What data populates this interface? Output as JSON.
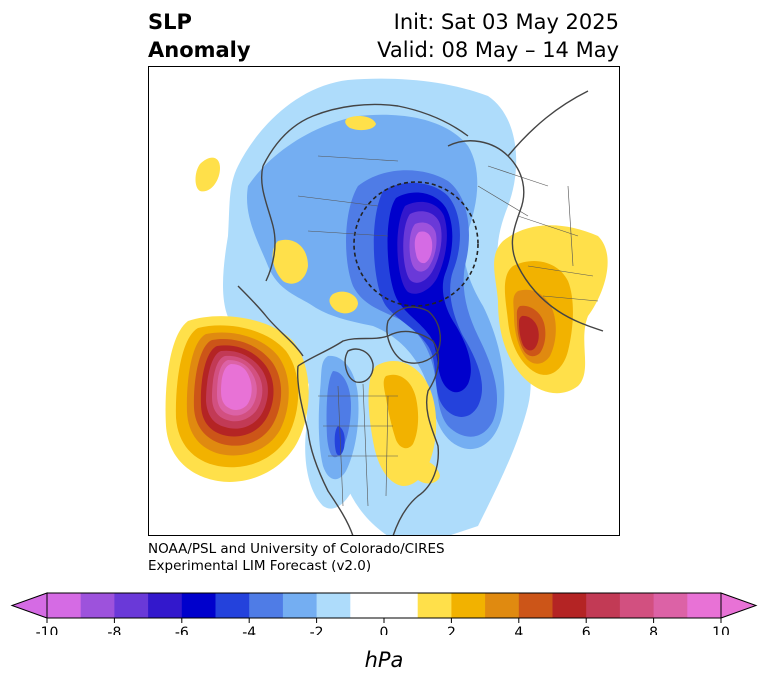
{
  "header": {
    "title_line1": "SLP",
    "title_line2": "Anomaly",
    "init_line": "Init: Sat 03 May 2025",
    "valid_line": "Valid: 08 May – 14 May"
  },
  "credits": {
    "line1": "NOAA/PSL and University of Colorado/CIRES",
    "line2": "Experimental LIM Forecast (v2.0)"
  },
  "colorbar": {
    "unit": "hPa",
    "ticks": [
      "-10",
      "-8",
      "-6",
      "-4",
      "-2",
      "0",
      "2",
      "4",
      "6",
      "8",
      "10"
    ],
    "colors": [
      "#d56be4",
      "#9d52dc",
      "#6a39d8",
      "#3318cc",
      "#0000cc",
      "#2442dc",
      "#4f7ce6",
      "#74aef2",
      "#aedcfb",
      "#ffffff",
      "#ffffff",
      "#ffe04a",
      "#f2b200",
      "#e08a10",
      "#cc5518",
      "#b42424",
      "#c23a55",
      "#d25080",
      "#dc62a6",
      "#e872d6"
    ]
  },
  "map": {
    "projection": "north-polar-stereographic",
    "features": [
      {
        "name": "arctic-low",
        "sign": "negative",
        "peak": -10
      },
      {
        "name": "pacific-high",
        "sign": "positive",
        "peak": 10
      },
      {
        "name": "north-atlantic-low",
        "sign": "negative",
        "peak": -6
      },
      {
        "name": "europe-high",
        "sign": "positive",
        "peak": 6
      },
      {
        "name": "eastern-canada-high",
        "sign": "positive",
        "peak": 4
      },
      {
        "name": "western-us-low",
        "sign": "negative",
        "peak": -4
      }
    ]
  }
}
